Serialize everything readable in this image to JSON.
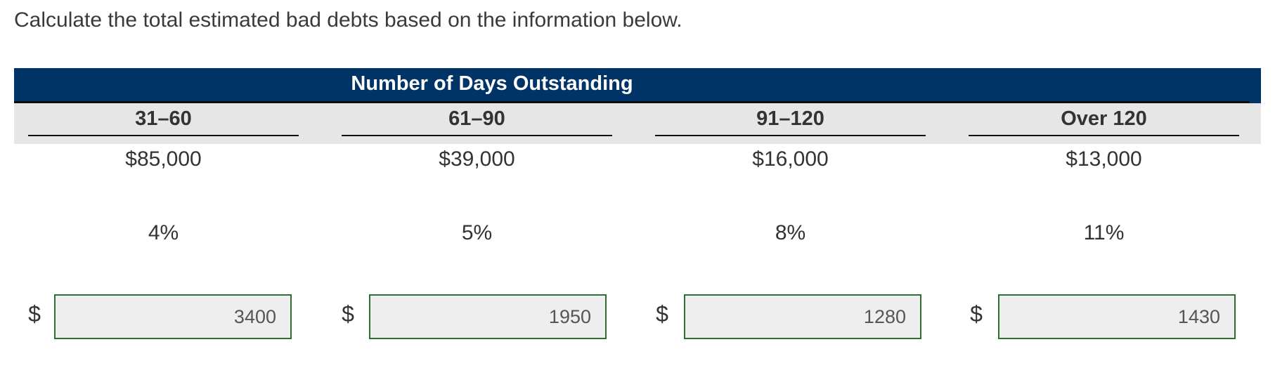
{
  "instruction": "Calculate the total estimated bad debts based on the information below.",
  "table": {
    "header_title": "Number of Days Outstanding",
    "columns": [
      {
        "label": "31–60",
        "amount": "$85,000",
        "percent": "4%",
        "currency": "$",
        "answer": "3400"
      },
      {
        "label": "61–90",
        "amount": "$39,000",
        "percent": "5%",
        "currency": "$",
        "answer": "1950"
      },
      {
        "label": "91–120",
        "amount": "$16,000",
        "percent": "8%",
        "currency": "$",
        "answer": "1280"
      },
      {
        "label": "Over 120",
        "amount": "$13,000",
        "percent": "11%",
        "currency": "$",
        "answer": "1430"
      }
    ]
  },
  "colors": {
    "header_band": "#003366",
    "column_header_band": "#e6e6e6",
    "input_border": "#2e6e2e",
    "input_background": "#eeeeee"
  }
}
